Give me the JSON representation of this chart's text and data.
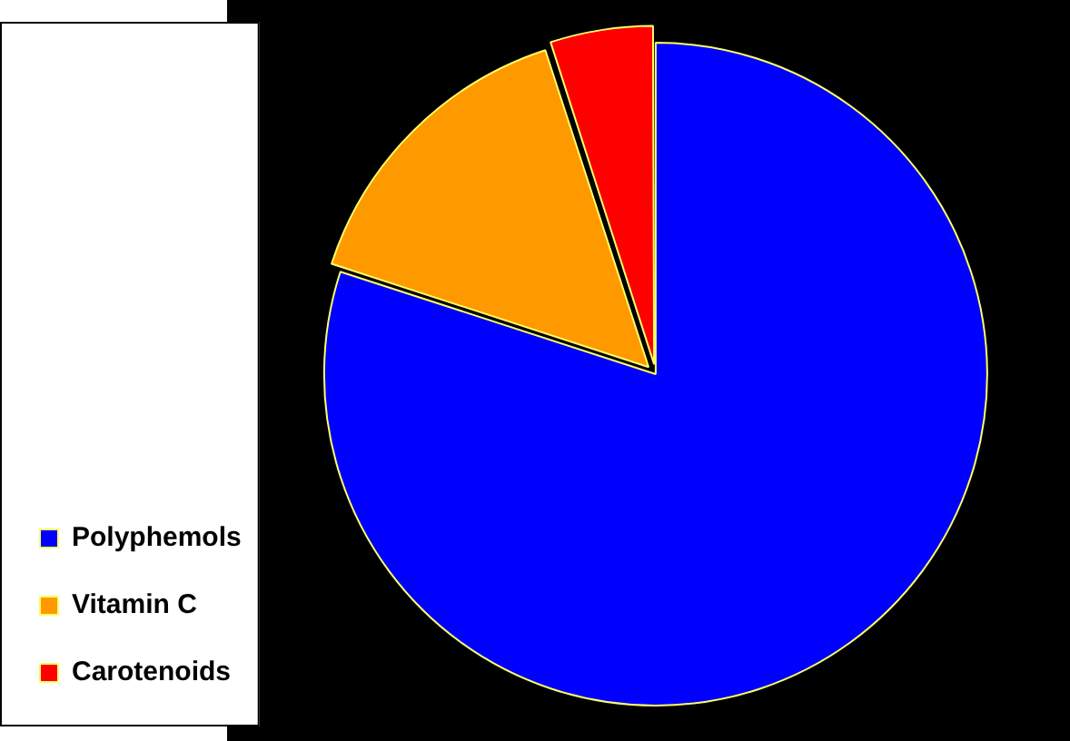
{
  "chart_data": {
    "type": "pie",
    "categories": [
      "Polyphemols",
      "Vitamin C",
      "Carotenoids"
    ],
    "values": [
      80,
      15,
      5
    ],
    "colors": [
      "#0000ff",
      "#ff9900",
      "#ff0000"
    ],
    "legend": "bottom left"
  }
}
